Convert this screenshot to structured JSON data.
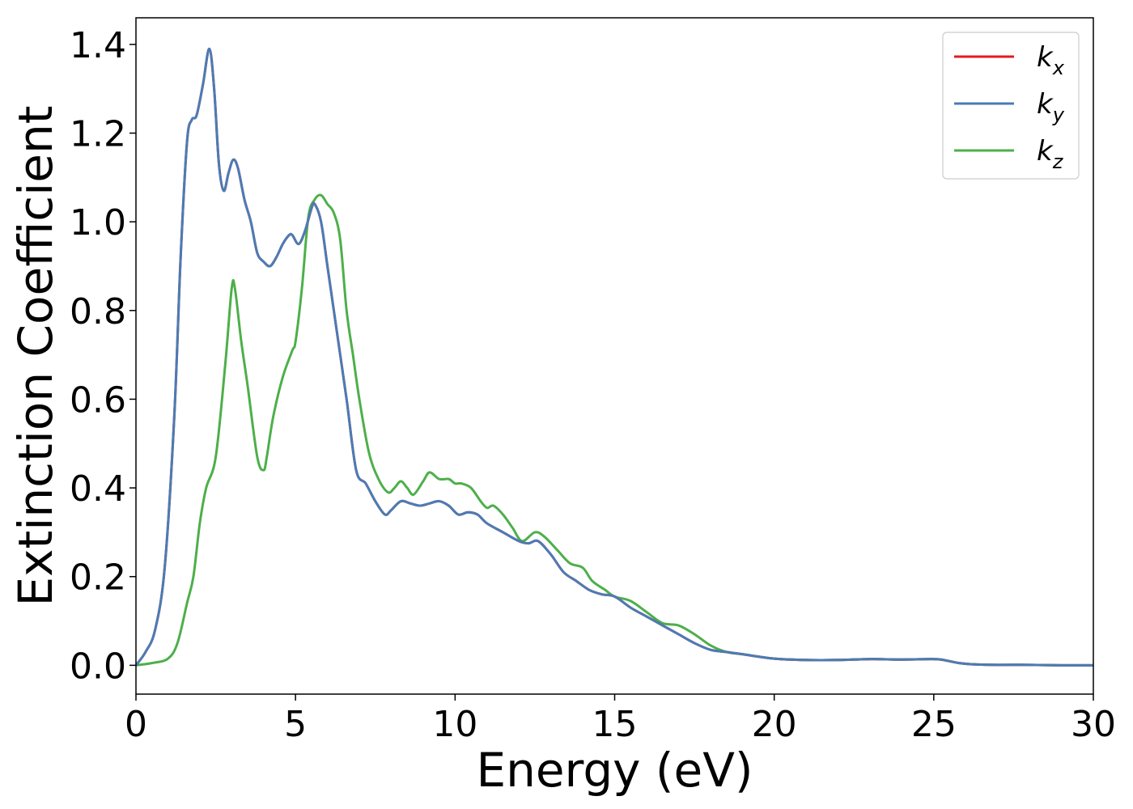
{
  "chart_data": {
    "type": "line",
    "xlabel": "Energy (eV)",
    "ylabel": "Extinction Coefficient",
    "xlim": [
      0,
      30
    ],
    "ylim": [
      -0.065,
      1.46
    ],
    "xticks": [
      0,
      5,
      10,
      15,
      20,
      25,
      30
    ],
    "xtick_labels": [
      "0",
      "5",
      "10",
      "15",
      "20",
      "25",
      "30"
    ],
    "yticks": [
      0.0,
      0.2,
      0.4,
      0.6,
      0.8,
      1.0,
      1.2,
      1.4
    ],
    "ytick_labels": [
      "0.0",
      "0.2",
      "0.4",
      "0.6",
      "0.8",
      "1.0",
      "1.2",
      "1.4"
    ],
    "grid": false,
    "legend_position": "top-right",
    "series": [
      {
        "name": "k_x",
        "base": "k",
        "sub": "x",
        "color": "#e41a1c",
        "x": [
          0,
          0.3,
          0.6,
          0.9,
          1.2,
          1.4,
          1.6,
          1.75,
          1.9,
          2.1,
          2.3,
          2.45,
          2.6,
          2.75,
          2.9,
          3.05,
          3.2,
          3.4,
          3.6,
          3.8,
          4.0,
          4.2,
          4.4,
          4.6,
          4.8,
          4.9,
          5.1,
          5.3,
          5.5,
          5.6,
          5.8,
          6.0,
          6.3,
          6.6,
          6.9,
          7.2,
          7.5,
          7.8,
          8.0,
          8.3,
          8.6,
          8.9,
          9.2,
          9.5,
          9.8,
          10.1,
          10.4,
          10.7,
          11.0,
          11.5,
          12.0,
          12.3,
          12.6,
          13.0,
          13.4,
          13.8,
          14.2,
          14.6,
          15.0,
          15.5,
          16.0,
          16.5,
          17.0,
          17.5,
          18.0,
          18.5,
          19.0,
          20.0,
          21.0,
          22.0,
          23.0,
          24.0,
          25.0,
          25.3,
          25.8,
          26.3,
          27.0,
          28.0,
          29.0,
          30.0
        ],
        "y": [
          0.0,
          0.03,
          0.08,
          0.22,
          0.56,
          0.92,
          1.18,
          1.23,
          1.24,
          1.31,
          1.39,
          1.3,
          1.13,
          1.07,
          1.11,
          1.14,
          1.12,
          1.05,
          1.0,
          0.93,
          0.91,
          0.9,
          0.92,
          0.95,
          0.97,
          0.97,
          0.95,
          0.98,
          1.03,
          1.04,
          1.0,
          0.9,
          0.75,
          0.6,
          0.44,
          0.41,
          0.37,
          0.34,
          0.35,
          0.37,
          0.365,
          0.36,
          0.365,
          0.37,
          0.36,
          0.34,
          0.345,
          0.34,
          0.32,
          0.3,
          0.28,
          0.275,
          0.28,
          0.25,
          0.21,
          0.19,
          0.17,
          0.16,
          0.155,
          0.13,
          0.11,
          0.09,
          0.07,
          0.05,
          0.035,
          0.03,
          0.025,
          0.015,
          0.012,
          0.012,
          0.014,
          0.013,
          0.014,
          0.012,
          0.005,
          0.002,
          0.001,
          0.001,
          0.0,
          0.0
        ]
      },
      {
        "name": "k_y",
        "base": "k",
        "sub": "y",
        "color": "#4a7cb5",
        "x": [
          0,
          0.3,
          0.6,
          0.9,
          1.2,
          1.4,
          1.6,
          1.75,
          1.9,
          2.1,
          2.3,
          2.45,
          2.6,
          2.75,
          2.9,
          3.05,
          3.2,
          3.4,
          3.6,
          3.8,
          4.0,
          4.2,
          4.4,
          4.6,
          4.8,
          4.9,
          5.1,
          5.3,
          5.5,
          5.6,
          5.8,
          6.0,
          6.3,
          6.6,
          6.9,
          7.2,
          7.5,
          7.8,
          8.0,
          8.3,
          8.6,
          8.9,
          9.2,
          9.5,
          9.8,
          10.1,
          10.4,
          10.7,
          11.0,
          11.5,
          12.0,
          12.3,
          12.6,
          13.0,
          13.4,
          13.8,
          14.2,
          14.6,
          15.0,
          15.5,
          16.0,
          16.5,
          17.0,
          17.5,
          18.0,
          18.5,
          19.0,
          20.0,
          21.0,
          22.0,
          23.0,
          24.0,
          25.0,
          25.3,
          25.8,
          26.3,
          27.0,
          28.0,
          29.0,
          30.0
        ],
        "y": [
          0.0,
          0.03,
          0.08,
          0.22,
          0.56,
          0.92,
          1.18,
          1.23,
          1.24,
          1.31,
          1.39,
          1.3,
          1.13,
          1.07,
          1.11,
          1.14,
          1.12,
          1.05,
          1.0,
          0.93,
          0.91,
          0.9,
          0.92,
          0.95,
          0.97,
          0.97,
          0.95,
          0.98,
          1.03,
          1.04,
          1.0,
          0.9,
          0.75,
          0.6,
          0.44,
          0.41,
          0.37,
          0.34,
          0.35,
          0.37,
          0.365,
          0.36,
          0.365,
          0.37,
          0.36,
          0.34,
          0.345,
          0.34,
          0.32,
          0.3,
          0.28,
          0.275,
          0.28,
          0.25,
          0.21,
          0.19,
          0.17,
          0.16,
          0.155,
          0.13,
          0.11,
          0.09,
          0.07,
          0.05,
          0.035,
          0.03,
          0.025,
          0.015,
          0.012,
          0.012,
          0.014,
          0.013,
          0.014,
          0.012,
          0.005,
          0.002,
          0.001,
          0.001,
          0.0,
          0.0
        ]
      },
      {
        "name": "k_z",
        "base": "k",
        "sub": "z",
        "color": "#4daf4a",
        "x": [
          0,
          0.5,
          1.0,
          1.3,
          1.6,
          1.8,
          2.0,
          2.2,
          2.5,
          2.8,
          3.0,
          3.1,
          3.3,
          3.5,
          3.8,
          4.0,
          4.1,
          4.3,
          4.6,
          4.9,
          5.0,
          5.2,
          5.4,
          5.6,
          5.8,
          6.0,
          6.2,
          6.4,
          6.6,
          6.8,
          7.0,
          7.3,
          7.6,
          7.9,
          8.1,
          8.3,
          8.5,
          8.7,
          9.0,
          9.2,
          9.5,
          9.8,
          10.0,
          10.2,
          10.5,
          10.8,
          11.0,
          11.2,
          11.5,
          11.8,
          12.1,
          12.5,
          12.8,
          13.2,
          13.6,
          14.0,
          14.3,
          14.7,
          15.0,
          15.5,
          16.0,
          16.5,
          17.0,
          17.5,
          18.0,
          18.5,
          19.0,
          20.0,
          21.0,
          22.0,
          23.0,
          24.0,
          25.0,
          25.3,
          25.8,
          26.3,
          27.0,
          28.0,
          29.0,
          30.0
        ],
        "y": [
          0.0,
          0.005,
          0.015,
          0.05,
          0.14,
          0.2,
          0.32,
          0.4,
          0.47,
          0.68,
          0.85,
          0.85,
          0.73,
          0.63,
          0.47,
          0.44,
          0.47,
          0.56,
          0.65,
          0.71,
          0.73,
          0.85,
          1.01,
          1.05,
          1.06,
          1.04,
          1.02,
          0.96,
          0.8,
          0.7,
          0.6,
          0.48,
          0.42,
          0.39,
          0.4,
          0.415,
          0.4,
          0.385,
          0.415,
          0.435,
          0.42,
          0.42,
          0.41,
          0.41,
          0.4,
          0.37,
          0.355,
          0.36,
          0.34,
          0.31,
          0.28,
          0.3,
          0.29,
          0.26,
          0.23,
          0.22,
          0.19,
          0.17,
          0.155,
          0.145,
          0.12,
          0.095,
          0.09,
          0.07,
          0.045,
          0.03,
          0.025,
          0.015,
          0.012,
          0.012,
          0.014,
          0.013,
          0.014,
          0.012,
          0.005,
          0.002,
          0.001,
          0.001,
          0.0,
          0.0
        ]
      }
    ]
  }
}
